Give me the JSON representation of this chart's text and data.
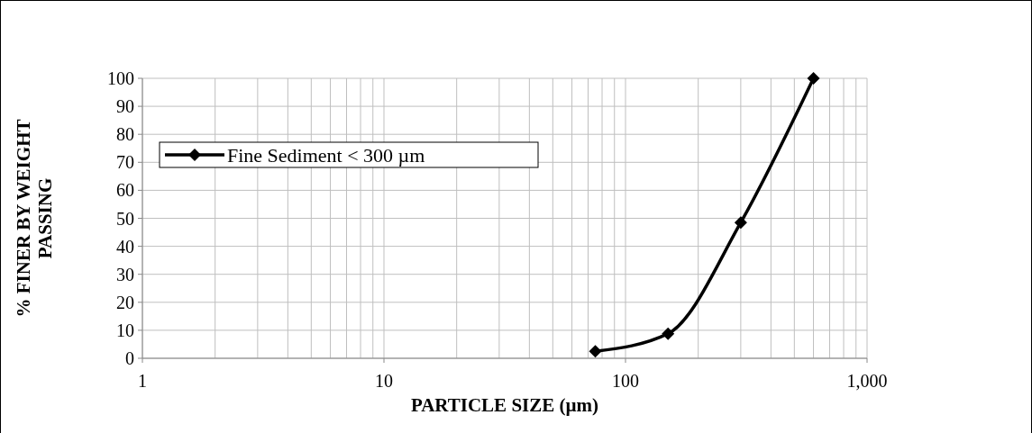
{
  "chart_data": {
    "type": "line",
    "xlabel": "PARTICLE SIZE (µm)",
    "ylabel": "% FINER BY WEIGHT PASSING",
    "x": [
      75,
      150,
      300,
      600
    ],
    "series": [
      {
        "name": "Fine Sediment < 300 µm",
        "color": "#000000",
        "values": [
          2.5,
          8.8,
          48.5,
          100
        ]
      }
    ],
    "log": "x",
    "xlim": [
      1,
      1000
    ],
    "xticks": [
      1,
      10,
      100,
      {
        "value": 1000,
        "label": "1,000"
      }
    ],
    "ylim": [
      0,
      100
    ],
    "yticks": [
      0,
      10,
      20,
      30,
      40,
      50,
      60,
      70,
      80,
      90,
      100
    ],
    "grid": true,
    "legend": "top left",
    "marker": "diamond",
    "line_style": "solid"
  }
}
